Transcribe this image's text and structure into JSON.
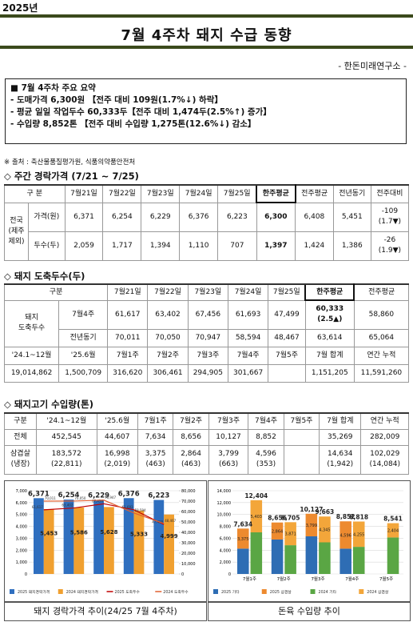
{
  "header": {
    "year": "2025년",
    "title": "7월 4주차 돼지 수급 동향",
    "org": "- 한돈미래연구소 -"
  },
  "summary": {
    "heading": "■ 7월 4주차 주요 요약",
    "items": [
      "- 도매가격 6,300원 【전주 대비 109원(1.7%↓) 하락】",
      "- 평균 일일 작업두수 60,333두【전주 대비 1,474두(2.5%↑) 증가】",
      "- 수입량 8,852톤 【전주 대비 수입량 1,275톤(12.6%↓) 감소】"
    ]
  },
  "source": "※ 출처 : 축산물품질평가원, 식품의약품안전처",
  "price_table": {
    "heading": "◇ 주간 경락가격 (7/21 ~ 7/25)",
    "header": [
      "구 분",
      "7월21일",
      "7월22일",
      "7월23일",
      "7월24일",
      "7월25일",
      "한주평균",
      "전주평균",
      "전년동기",
      "전주대비"
    ],
    "region": [
      "전국",
      "(제주",
      "제외)"
    ],
    "rows": [
      {
        "label": "가격(원)",
        "cells": [
          "6,371",
          "6,254",
          "6,229",
          "6,376",
          "6,223",
          "6,300",
          "6,408",
          "5,451",
          [
            "-109",
            "(1.7▼)"
          ]
        ]
      },
      {
        "label": "두수(두)",
        "cells": [
          "2,059",
          "1,717",
          "1,394",
          "1,110",
          "707",
          "1,397",
          "1,424",
          "1,386",
          [
            "-26",
            "(1.9▼)"
          ]
        ]
      }
    ]
  },
  "slaughter_table": {
    "heading": "◇ 돼지 도축두수(두)",
    "header": [
      "구분",
      "7월21일",
      "7월22일",
      "7월23일",
      "7월24일",
      "7월25일",
      "한주평균",
      "전주평균"
    ],
    "group": [
      "돼지",
      "도축두수"
    ],
    "rows": [
      {
        "label": "7월4주",
        "cells": [
          "61,617",
          "63,402",
          "67,456",
          "61,693",
          "47,499",
          [
            "60,333",
            "(2.5▲)"
          ],
          "58,860"
        ]
      },
      {
        "label": "전년동기",
        "cells": [
          "70,011",
          "70,050",
          "70,947",
          "58,594",
          "48,467",
          "63,614",
          "65,064"
        ]
      }
    ],
    "sub_header": [
      "'24.1~12월",
      "'25.6월",
      "7월1주",
      "7월2주",
      "7월3주",
      "7월4주",
      "7월5주",
      "7월 합계",
      "연간 누적"
    ],
    "sub_row": [
      "19,014,862",
      "1,500,709",
      "316,620",
      "306,461",
      "294,905",
      "301,667",
      null,
      "1,151,205",
      "11,591,260"
    ]
  },
  "import_table": {
    "heading": "◇ 돼지고기 수입량(톤)",
    "header": [
      "구분",
      "'24.1~12월",
      "'25.6월",
      "7월1주",
      "7월2주",
      "7월3주",
      "7월4주",
      "7월5주",
      "7월 합계",
      "연간 누적"
    ],
    "rows": [
      {
        "label": "전체",
        "cells": [
          "452,545",
          "44,607",
          "7,634",
          "8,656",
          "10,127",
          "8,852",
          null,
          "35,269",
          "282,009"
        ]
      },
      {
        "label": [
          "삼겹살",
          "(냉장)"
        ],
        "cells": [
          [
            "183,572",
            "(22,811)"
          ],
          [
            "16,998",
            "(2,019)"
          ],
          [
            "3,375",
            "(463)"
          ],
          [
            "2,864",
            "(463)"
          ],
          [
            "3,799",
            "(663)"
          ],
          [
            "4,596",
            "(353)"
          ],
          null,
          [
            "14,634",
            "(1,942)"
          ],
          [
            "102,029",
            "(14,084)"
          ]
        ]
      }
    ]
  },
  "chart_data": [
    {
      "type": "bar_line",
      "title": "돼지 경락가격 추이(24/25 7월 4주차)",
      "categories": [
        null,
        null,
        null,
        null,
        null
      ],
      "ylim": [
        0,
        7000
      ],
      "yticks": [
        0,
        {
          "value": 1000,
          "label": "1,000"
        },
        {
          "value": 2000,
          "label": "2,000"
        },
        {
          "value": 3000,
          "label": "3,000"
        },
        {
          "value": 4000,
          "label": "4,000"
        },
        {
          "value": 5000,
          "label": "5,000"
        },
        {
          "value": 6000,
          "label": "6,000"
        },
        {
          "value": 7000,
          "label": "7,000"
        }
      ],
      "y2lim": [
        0,
        80000
      ],
      "y2ticks": [
        0,
        {
          "value": 10000,
          "label": "10,000"
        },
        {
          "value": 20000,
          "label": "20,000"
        },
        {
          "value": 30000,
          "label": "30,000"
        },
        {
          "value": 40000,
          "label": "40,000"
        },
        {
          "value": 50000,
          "label": "50,000"
        },
        {
          "value": 60000,
          "label": "60,000"
        },
        {
          "value": 70000,
          "label": "70,000"
        },
        {
          "value": 80000,
          "label": "80,000"
        }
      ],
      "grid": true,
      "series": [
        {
          "name": "2025 돼지경락가격",
          "type": "bar",
          "color": "#2f6fbf",
          "values": [
            6371,
            6254,
            6229,
            6376,
            6223
          ],
          "value_labels": [
            "6,371",
            "6,254",
            "6,229",
            "6,376",
            "6,223"
          ]
        },
        {
          "name": "2024 돼지경락가격",
          "type": "bar",
          "color": "#f0a030",
          "values": [
            5453,
            5586,
            5628,
            5333,
            4999
          ],
          "value_labels": [
            "5,453",
            "5,586",
            "5,628",
            "5,333",
            "4,999"
          ]
        },
        {
          "name": "2025 도축두수",
          "type": "line",
          "axis": "y2",
          "color": "#c00000",
          "values": [
            61617,
            63402,
            67456,
            61693,
            47499
          ],
          "value_labels": [
            "61,617",
            "63,402",
            "67,456",
            "61,693",
            "47,499"
          ]
        },
        {
          "name": "2024 도축두수",
          "type": "line",
          "axis": "y2",
          "color": "#e06030",
          "values": [
            70011,
            70050,
            70947,
            58594,
            48467
          ],
          "value_labels": [
            "70,011",
            "70,050",
            "70,947",
            "58,594",
            "48,467"
          ]
        }
      ]
    },
    {
      "type": "stacked_bar",
      "title": "돈육 수입량 추이",
      "categories": [
        "7월1주",
        "7월2주",
        "7월3주",
        "7월4주",
        "7월5주"
      ],
      "ylim": [
        0,
        14000
      ],
      "yticks": [
        0,
        {
          "value": 2000,
          "label": "2,000"
        },
        {
          "value": 4000,
          "label": "4,000"
        },
        {
          "value": 6000,
          "label": "6,000"
        },
        {
          "value": 8000,
          "label": "8,000"
        },
        {
          "value": 10000,
          "label": "10,000"
        },
        {
          "value": 12000,
          "label": "12,000"
        },
        {
          "value": 14000,
          "label": "14,000"
        }
      ],
      "grid": true,
      "stacks": [
        "2025",
        "2024"
      ],
      "series": [
        {
          "name": "2025 기타",
          "stack": "2025",
          "color": "#2e6db4",
          "values": [
            4259,
            5792,
            6328,
            4256,
            null
          ]
        },
        {
          "name": "2025 삼겹살",
          "stack": "2025",
          "color": "#ed8a2f",
          "values": [
            3375,
            2864,
            3799,
            4596,
            null
          ],
          "value_labels": [
            "3,375",
            "2,864",
            "3,799",
            "4,596",
            null
          ]
        },
        {
          "name": "2024 기타",
          "stack": "2024",
          "color": "#5aa644",
          "values": [
            7001,
            4834,
            5318,
            4563,
            6137
          ]
        },
        {
          "name": "2024 삼겹살",
          "stack": "2024",
          "color": "#f3a63a",
          "values": [
            5403,
            3871,
            4345,
            4255,
            2404
          ],
          "value_labels": [
            "5,403",
            "3,871",
            "4,345",
            "4,255",
            "2,404"
          ]
        }
      ],
      "total_labels": [
        [
          "7,634",
          "8,656",
          "10,127",
          "8,852",
          null
        ],
        [
          "12,404",
          "8,705",
          "9,663",
          "8,818",
          "8,541"
        ]
      ]
    }
  ]
}
